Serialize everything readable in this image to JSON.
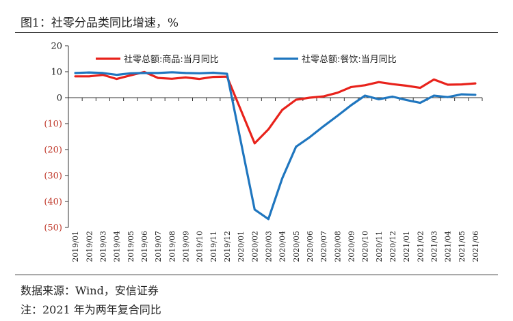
{
  "figure": {
    "title": "图1：社零分品类同比增速，%",
    "source": "数据来源：Wind，安信证券",
    "footnote": "注：2021 年为两年复合同比"
  },
  "colors": {
    "series_goods": "#e8221b",
    "series_catering": "#1f76bf",
    "negative_tick": "#c0392b",
    "axis": "#333333"
  },
  "chart_data": {
    "type": "line",
    "title": "",
    "xlabel": "",
    "ylabel": "",
    "ylim": [
      -50,
      20
    ],
    "yticks": [
      20,
      10,
      0,
      -10,
      -20,
      -30,
      -40,
      -50
    ],
    "ytick_labels": [
      "20",
      "10",
      "0",
      "(10)",
      "(20)",
      "(30)",
      "(40)",
      "(50)"
    ],
    "grid": false,
    "legend_position": "top",
    "categories": [
      "2019/01",
      "2019/02",
      "2019/03",
      "2019/04",
      "2019/05",
      "2019/06",
      "2019/07",
      "2019/08",
      "2019/09",
      "2019/10",
      "2019/11",
      "2019/12",
      "2020/01",
      "2020/02",
      "2020/03",
      "2020/04",
      "2020/05",
      "2020/06",
      "2020/07",
      "2020/08",
      "2020/09",
      "2020/10",
      "2020/11",
      "2020/12",
      "2021/01",
      "2021/02",
      "2021/03",
      "2021/04",
      "2021/05",
      "2021/06"
    ],
    "series": [
      {
        "name": "社零总额:商品:当月同比",
        "color": "#e8221b",
        "values": [
          8.2,
          8.2,
          8.8,
          7.2,
          8.6,
          9.9,
          7.6,
          7.3,
          7.8,
          7.2,
          8.0,
          8.1,
          null,
          -17.6,
          -12.2,
          -4.7,
          -0.8,
          0.0,
          0.5,
          1.9,
          4.1,
          4.8,
          6.0,
          5.2,
          4.6,
          3.8,
          7.0,
          5.0,
          5.1,
          5.5
        ]
      },
      {
        "name": "社零总额:餐饮:当月同比",
        "color": "#1f76bf",
        "values": [
          9.5,
          9.7,
          9.5,
          8.8,
          9.4,
          9.5,
          9.5,
          9.8,
          9.5,
          9.4,
          9.6,
          9.2,
          null,
          -43.1,
          -46.8,
          -31.1,
          -18.9,
          -15.2,
          -11.0,
          -7.0,
          -2.9,
          0.8,
          -0.6,
          0.4,
          -0.9,
          -2.0,
          0.8,
          0.2,
          1.3,
          1.1
        ]
      }
    ]
  }
}
